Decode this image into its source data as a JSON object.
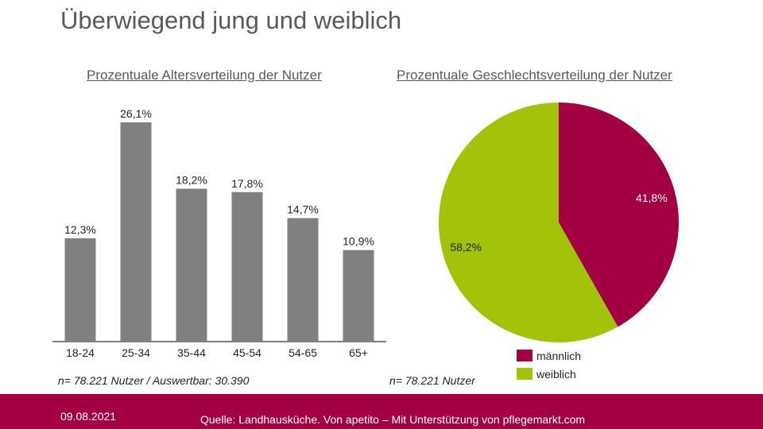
{
  "title": "Überwiegend jung und weiblich",
  "chart_data": [
    {
      "type": "bar",
      "title": "Prozentuale Altersverteilung der Nutzer",
      "categories": [
        "18-24",
        "25-34",
        "35-44",
        "45-54",
        "54-65",
        "65+"
      ],
      "values": [
        12.3,
        26.1,
        18.2,
        17.8,
        14.7,
        10.9
      ],
      "labels": [
        "12,3%",
        "26,1%",
        "18,2%",
        "17,8%",
        "14,7%",
        "10,9%"
      ],
      "ylim": [
        0,
        26.1
      ],
      "grid": false,
      "color": "#808080",
      "note": "n= 78.221 Nutzer / Auswertbar: 30.390"
    },
    {
      "type": "pie",
      "title": "Prozentuale Geschlechtsverteilung der Nutzer",
      "slices": [
        {
          "name": "männlich",
          "value": 41.8,
          "label": "41,8%",
          "color": "#A30044"
        },
        {
          "name": "weiblich",
          "value": 58.2,
          "label": "58,2%",
          "color": "#A2C30A"
        }
      ],
      "legend": "bottom",
      "note": "n= 78.221 Nutzer"
    }
  ],
  "footer": {
    "date": "09.08.2021",
    "source": "Quelle: Landhausküche. Von apetito – Mit Unterstützung von pflegemarkt.com"
  }
}
